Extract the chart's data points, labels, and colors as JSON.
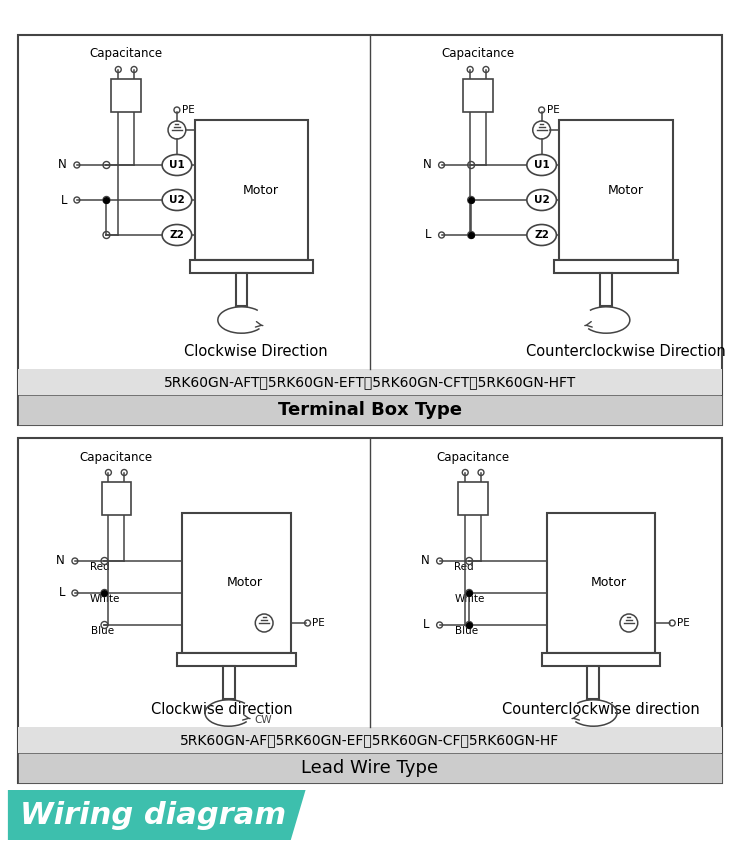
{
  "title": "Wiring diagram",
  "title_bg": "#3dbfad",
  "title_text_color": "#ffffff",
  "page_bg": "#ffffff",
  "section1_title": "Lead Wire Type",
  "section1_models": "5RK60GN-AF、5RK60GN-EF、5RK60GN-CF、5RK60GN-HF",
  "section2_title": "Terminal Box Type",
  "section2_models": "5RK60GN-AFT、5RK60GN-EFT、5RK60GN-CFT、5RK60GN-HFT",
  "cw_label": "Clockwise direction",
  "ccw_label": "Counterclockwise direction",
  "cw_label2": "Clockwise Direction",
  "ccw_label2": "Counterclockwise Direction",
  "motor_label": "Motor",
  "capacitance_label": "Capacitance",
  "pe_label": "PE",
  "cw_tag": "CW",
  "header_bg": "#cccccc",
  "subheader_bg": "#e0e0e0",
  "box_bg": "#ffffff",
  "line_color": "#444444",
  "label_blue": "Blue",
  "label_white": "White",
  "label_red": "Red",
  "terminal_z2": "Z2",
  "terminal_u2": "U2",
  "terminal_u1": "U1",
  "L_label": "L",
  "N_label": "N"
}
